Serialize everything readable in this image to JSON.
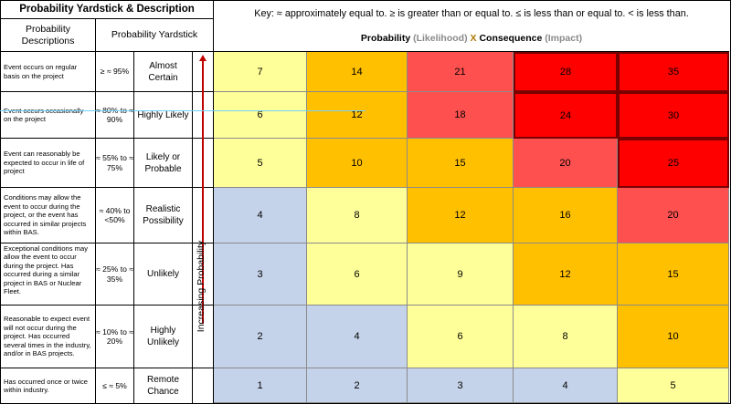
{
  "yardstick": {
    "title": "Probability Yardstick & Description",
    "header_desc": "Probability Descriptions",
    "header_yard": "Probability Yardstick",
    "rows": [
      {
        "desc": "Event occurs on regular basis on the project",
        "pct": "≥ ≈ 95%",
        "label": "Almost Certain"
      },
      {
        "desc": "Event occurs occasionally on the project",
        "pct": "≈ 80% to ≈ 90%",
        "label": "Highly Likely"
      },
      {
        "desc": "Event can reasonably be expected to occur in life of project",
        "pct": "≈ 55% to ≈ 75%",
        "label": "Likely or Probable"
      },
      {
        "desc": "Conditions may allow the event to occur during the project, or the event has occurred in similar projects within BAS.",
        "pct": "≈ 40% to <50%",
        "label": "Realistic Possibility"
      },
      {
        "desc": "Exceptional conditions may allow the event to occur during the project. Has occurred during a similar project in BAS or Nuclear Fleet.",
        "pct": "≈ 25% to ≈ 35%",
        "label": "Unlikely"
      },
      {
        "desc": "Reasonable to expect event will not occur during the project. Has occurred several times in the industry, and/or in BAS projects.",
        "pct": "≈ 10% to ≈ 20%",
        "label": "Highly Unlikely"
      },
      {
        "desc": "Has occurred once or twice within industry.",
        "pct": "≤ ≈ 5%",
        "label": "Remote Chance"
      }
    ],
    "axis_label": "Increasing Probability"
  },
  "key": {
    "text": "Key:  ≈ approximately equal to.  ≥ is greater than or equal to.  ≤ is less than or equal to.  < is less than."
  },
  "matrix_title": {
    "probability": "Probability",
    "likelihood": "(Likelihood)",
    "x": "X",
    "consequence": "Consequence",
    "impact": "(Impact)"
  },
  "colors": {
    "blue": "#c5d3ea",
    "yellow": "#ffff99",
    "orange": "#ffc000",
    "lightred": "#ff5050",
    "red": "#ff0000"
  },
  "matrix": [
    [
      {
        "v": "7",
        "c": "yellow"
      },
      {
        "v": "14",
        "c": "orange"
      },
      {
        "v": "21",
        "c": "lightred"
      },
      {
        "v": "28",
        "c": "red"
      },
      {
        "v": "35",
        "c": "red"
      }
    ],
    [
      {
        "v": "6",
        "c": "yellow"
      },
      {
        "v": "12",
        "c": "orange"
      },
      {
        "v": "18",
        "c": "lightred"
      },
      {
        "v": "24",
        "c": "red"
      },
      {
        "v": "30",
        "c": "red"
      }
    ],
    [
      {
        "v": "5",
        "c": "yellow"
      },
      {
        "v": "10",
        "c": "orange"
      },
      {
        "v": "15",
        "c": "orange"
      },
      {
        "v": "20",
        "c": "lightred"
      },
      {
        "v": "25",
        "c": "red"
      }
    ],
    [
      {
        "v": "4",
        "c": "blue"
      },
      {
        "v": "8",
        "c": "yellow"
      },
      {
        "v": "12",
        "c": "orange"
      },
      {
        "v": "16",
        "c": "orange"
      },
      {
        "v": "20",
        "c": "lightred"
      }
    ],
    [
      {
        "v": "3",
        "c": "blue"
      },
      {
        "v": "6",
        "c": "yellow"
      },
      {
        "v": "9",
        "c": "yellow"
      },
      {
        "v": "12",
        "c": "orange"
      },
      {
        "v": "15",
        "c": "orange"
      }
    ],
    [
      {
        "v": "2",
        "c": "blue"
      },
      {
        "v": "4",
        "c": "blue"
      },
      {
        "v": "6",
        "c": "yellow"
      },
      {
        "v": "8",
        "c": "yellow"
      },
      {
        "v": "10",
        "c": "orange"
      }
    ],
    [
      {
        "v": "1",
        "c": "blue"
      },
      {
        "v": "2",
        "c": "blue"
      },
      {
        "v": "3",
        "c": "blue"
      },
      {
        "v": "4",
        "c": "blue"
      },
      {
        "v": "5",
        "c": "yellow"
      }
    ]
  ]
}
